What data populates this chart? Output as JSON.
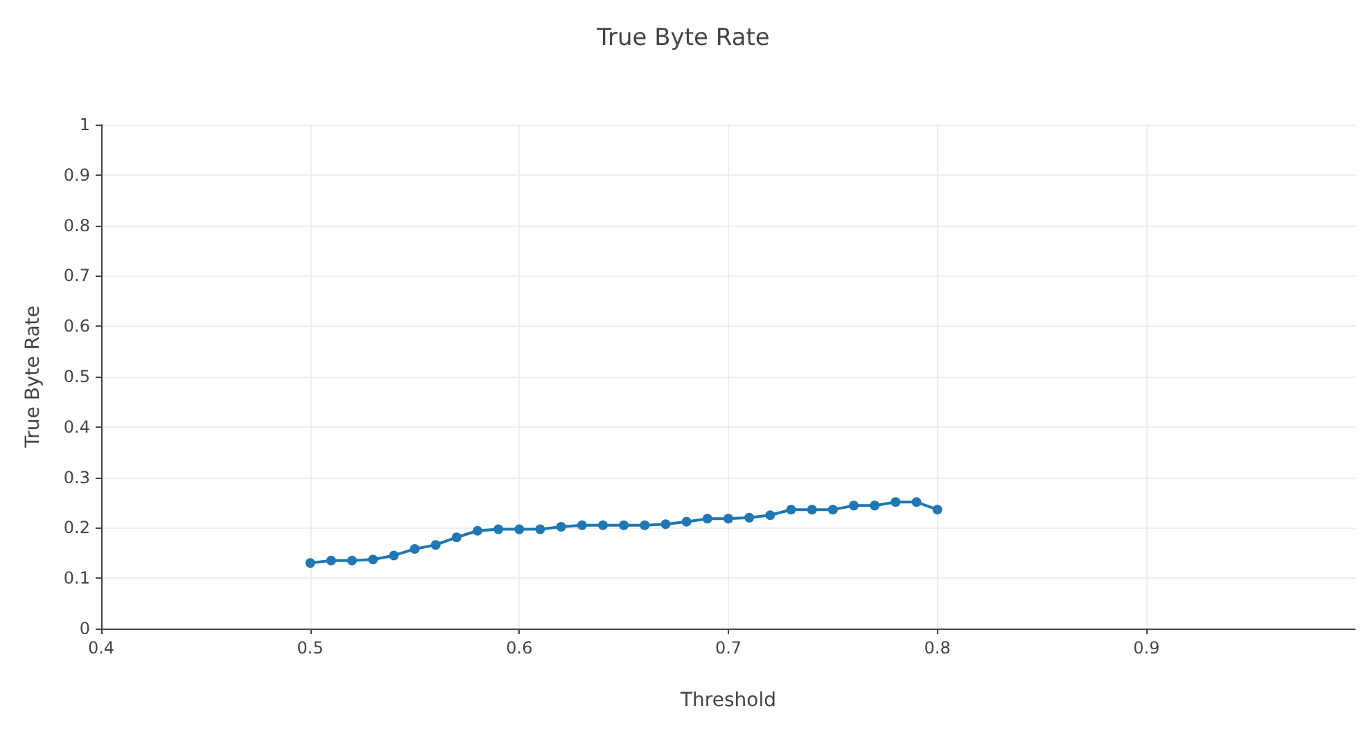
{
  "chart_data": {
    "type": "line",
    "title": "True Byte Rate",
    "xlabel": "Threshold",
    "ylabel": "True Byte Rate",
    "x": [
      0.5,
      0.51,
      0.52,
      0.53,
      0.54,
      0.55,
      0.56,
      0.57,
      0.58,
      0.59,
      0.6,
      0.61,
      0.62,
      0.63,
      0.64,
      0.65,
      0.66,
      0.67,
      0.68,
      0.69,
      0.7,
      0.71,
      0.72,
      0.73,
      0.74,
      0.75,
      0.76,
      0.77,
      0.78,
      0.79,
      0.8
    ],
    "series": [
      {
        "color": "#1f77b4",
        "values": [
          0.13,
          0.135,
          0.135,
          0.137,
          0.145,
          0.158,
          0.166,
          0.181,
          0.194,
          0.197,
          0.197,
          0.197,
          0.202,
          0.205,
          0.205,
          0.205,
          0.205,
          0.207,
          0.212,
          0.218,
          0.218,
          0.22,
          0.225,
          0.236,
          0.236,
          0.236,
          0.244,
          0.244,
          0.251,
          0.251,
          0.236
        ]
      }
    ],
    "xlim": [
      0.4,
      1
    ],
    "xticks": [
      0.4,
      0.5,
      0.6,
      0.7,
      0.8,
      0.9
    ],
    "ylim": [
      0,
      1
    ],
    "yticks": [
      0,
      0.1,
      0.2,
      0.3,
      0.4,
      0.5,
      0.6,
      0.7,
      0.8,
      0.9,
      1
    ],
    "grid": true,
    "marker": "circle",
    "line_style": "solid"
  }
}
